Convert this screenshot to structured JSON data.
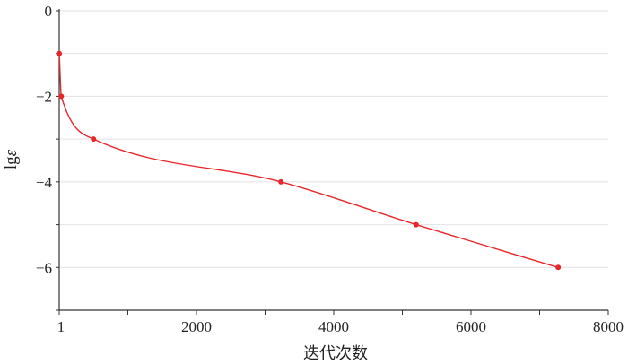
{
  "chart_data": {
    "type": "line",
    "title": "",
    "xlabel": "迭代次数",
    "ylabel_main": "lg",
    "ylabel_symbol": "ε",
    "xlim": [
      0,
      8000
    ],
    "ylim": [
      -7,
      0
    ],
    "x_ticks": [
      {
        "value": 0,
        "label": "1"
      },
      {
        "value": 2000,
        "label": "2000"
      },
      {
        "value": 4000,
        "label": "4000"
      },
      {
        "value": 6000,
        "label": "6000"
      },
      {
        "value": 8000,
        "label": "8000"
      }
    ],
    "y_ticks": [
      {
        "value": 0,
        "label": "0"
      },
      {
        "value": -2,
        "label": "−2"
      },
      {
        "value": -4,
        "label": "−4"
      },
      {
        "value": -6,
        "label": "−6"
      }
    ],
    "grid": true,
    "series": [
      {
        "color": "#e8262a",
        "points": [
          {
            "x": 1,
            "y": -1
          },
          {
            "x": 30,
            "y": -2
          },
          {
            "x": 500,
            "y": -3
          },
          {
            "x": 3230,
            "y": -4
          },
          {
            "x": 5200,
            "y": -5
          },
          {
            "x": 7270,
            "y": -6
          }
        ]
      }
    ]
  }
}
